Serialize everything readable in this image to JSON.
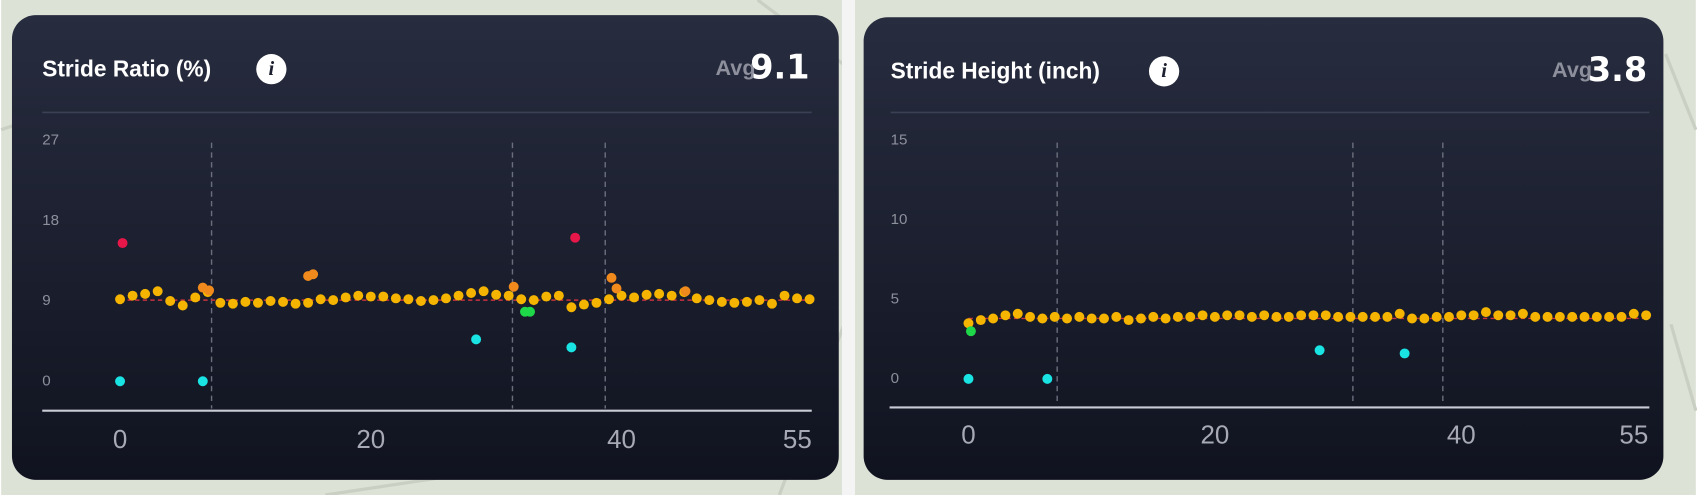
{
  "chart_data": [
    {
      "type": "scatter",
      "title": "Stride Ratio (%)",
      "avg_label": "Avg",
      "avg": 9.1,
      "avg_color": "#c8323f",
      "xlim": [
        0,
        55
      ],
      "xticks": [
        0,
        20,
        40,
        55
      ],
      "ylim": [
        -3.3,
        27
      ],
      "yticks": [
        0,
        9,
        18,
        27
      ],
      "markers": [
        7.3,
        31.3,
        38.7
      ],
      "series": [
        {
          "color": "#f5b400",
          "x": [
            0,
            1,
            2,
            3,
            4,
            5,
            6,
            7,
            8,
            9,
            10,
            11,
            12,
            13,
            14,
            15,
            16,
            17,
            18,
            19,
            20,
            21,
            22,
            23,
            24,
            25,
            26,
            27,
            28,
            29,
            30,
            31,
            32,
            33,
            34,
            35,
            36,
            37,
            38,
            39,
            40,
            41,
            42,
            43,
            44,
            45,
            46,
            47,
            48,
            49,
            50,
            51,
            52,
            53,
            54,
            55
          ],
          "values": [
            9.2,
            9.6,
            9.8,
            10.1,
            9.0,
            8.5,
            9.4,
            10.0,
            8.8,
            8.7,
            8.9,
            8.8,
            9.0,
            8.9,
            8.7,
            8.8,
            9.2,
            9.1,
            9.4,
            9.6,
            9.5,
            9.5,
            9.3,
            9.2,
            9.0,
            9.1,
            9.3,
            9.6,
            9.9,
            10.1,
            9.7,
            9.6,
            9.2,
            9.1,
            9.5,
            9.6,
            8.3,
            8.6,
            8.8,
            9.2,
            9.6,
            9.4,
            9.7,
            9.8,
            9.6,
            10.0,
            9.3,
            9.1,
            8.9,
            8.8,
            8.9,
            9.1,
            8.7,
            9.6,
            9.3,
            9.2
          ]
        },
        {
          "color": "#f08a1c",
          "x": [
            6.6,
            7.1,
            15.0,
            15.4,
            31.4,
            39.2,
            39.6,
            45.1
          ],
          "values": [
            10.5,
            10.2,
            11.8,
            12.0,
            10.6,
            11.6,
            10.4,
            10.1
          ]
        },
        {
          "color": "#e8174a",
          "x": [
            0.2,
            36.3
          ],
          "values": [
            15.5,
            16.1
          ]
        },
        {
          "color": "#19e3e3",
          "x": [
            0,
            6.6,
            28.4,
            36.0
          ],
          "values": [
            0,
            0,
            4.7,
            3.8
          ]
        },
        {
          "color": "#1fd84a",
          "x": [
            32.3,
            32.7
          ],
          "values": [
            7.8,
            7.8
          ]
        }
      ]
    },
    {
      "type": "scatter",
      "title": "Stride Height (inch)",
      "avg_label": "Avg",
      "avg": 3.8,
      "avg_color": "#c8323f",
      "xlim": [
        0,
        55
      ],
      "xticks": [
        0,
        20,
        40,
        55
      ],
      "ylim": [
        -1.8,
        15
      ],
      "yticks": [
        0,
        5,
        10,
        15
      ],
      "markers": [
        7.2,
        31.2,
        38.5
      ],
      "series": [
        {
          "color": "#f5b400",
          "x": [
            0,
            1,
            2,
            3,
            4,
            5,
            6,
            7,
            8,
            9,
            10,
            11,
            12,
            13,
            14,
            15,
            16,
            17,
            18,
            19,
            20,
            21,
            22,
            23,
            24,
            25,
            26,
            27,
            28,
            29,
            30,
            31,
            32,
            33,
            34,
            35,
            36,
            37,
            38,
            39,
            40,
            41,
            42,
            43,
            44,
            45,
            46,
            47,
            48,
            49,
            50,
            51,
            52,
            53,
            54,
            55
          ],
          "values": [
            3.5,
            3.7,
            3.8,
            4.0,
            4.1,
            3.9,
            3.8,
            3.9,
            3.8,
            3.9,
            3.8,
            3.8,
            3.9,
            3.7,
            3.8,
            3.9,
            3.8,
            3.9,
            3.9,
            4.0,
            3.9,
            4.0,
            4.0,
            3.9,
            4.0,
            3.9,
            3.9,
            4.0,
            4.0,
            4.0,
            3.9,
            3.9,
            3.9,
            3.9,
            3.9,
            4.1,
            3.8,
            3.8,
            3.9,
            3.9,
            4.0,
            4.0,
            4.2,
            4.0,
            4.0,
            4.1,
            3.9,
            3.9,
            3.9,
            3.9,
            3.9,
            3.9,
            3.9,
            3.9,
            4.1,
            4.0
          ]
        },
        {
          "color": "#1fd84a",
          "x": [
            0.2
          ],
          "values": [
            3.0
          ]
        },
        {
          "color": "#19e3e3",
          "x": [
            0,
            6.4,
            28.5,
            35.4
          ],
          "values": [
            0,
            0,
            1.8,
            1.6
          ]
        }
      ]
    }
  ]
}
